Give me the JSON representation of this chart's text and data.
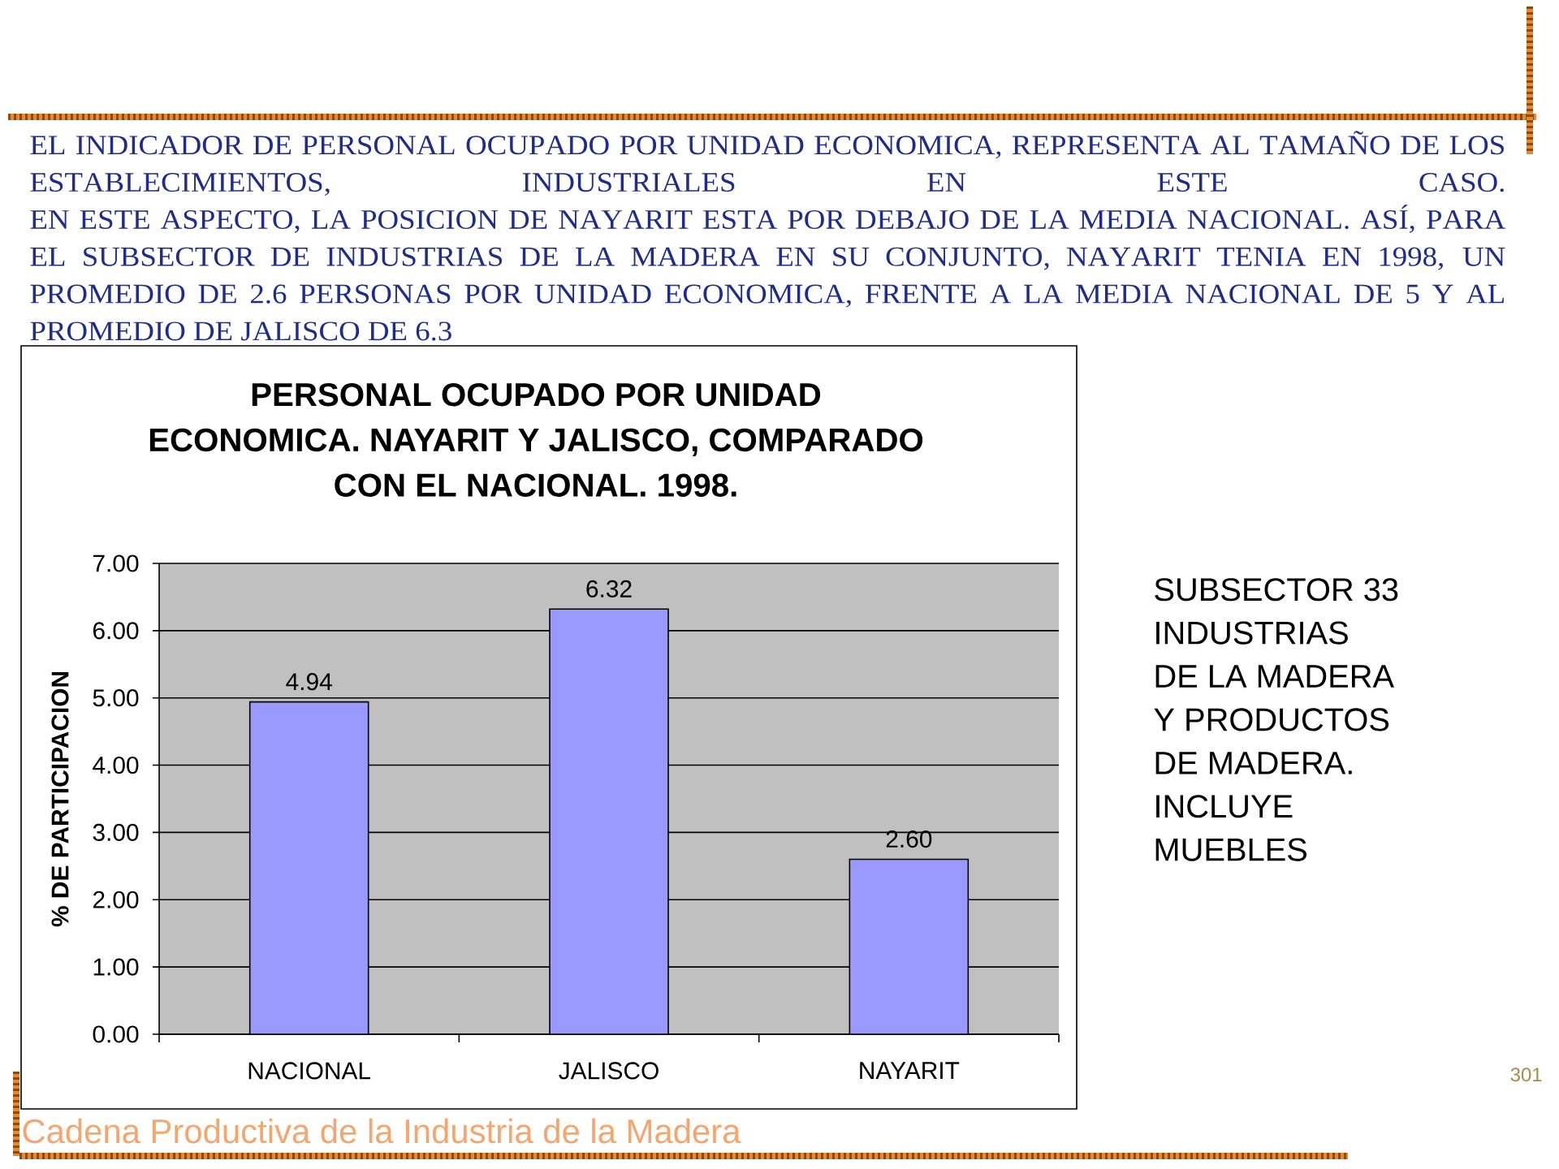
{
  "chart_data": {
    "type": "bar",
    "title": "PERSONAL OCUPADO POR UNIDAD ECONOMICA. NAYARIT Y JALISCO, COMPARADO CON EL NACIONAL. 1998.",
    "ylabel": "% DE PARTICIPACION",
    "categories": [
      "NACIONAL",
      "JALISCO",
      "NAYARIT"
    ],
    "values": [
      4.94,
      6.32,
      2.6
    ],
    "value_labels": [
      "4.94",
      "6.32",
      "2.60"
    ],
    "color": "#9999ff",
    "ylim": [
      0,
      7
    ],
    "yticks": [
      {
        "value": 0,
        "label": "0.00"
      },
      {
        "value": 1,
        "label": "1.00"
      },
      {
        "value": 2,
        "label": "2.00"
      },
      {
        "value": 3,
        "label": "3.00"
      },
      {
        "value": 4,
        "label": "4.00"
      },
      {
        "value": 5,
        "label": "5.00"
      },
      {
        "value": 6,
        "label": "6.00"
      },
      {
        "value": 7,
        "label": "7.00"
      }
    ],
    "grid": "y",
    "annotations": [
      "EL INDICADOR DE PERSONAL OCUPADO POR UNIDAD ECONOMICA, REPRESENTA AL TAMAÑO DE LOS ESTABLECIMIENTOS, INDUSTRIALES EN ESTE CASO.",
      "EN ESTE ASPECTO, LA POSICION DE NAYARIT ESTA POR DEBAJO DE LA MEDIA NACIONAL. ASÍ, PARA EL SUBSECTOR DE INDUSTRIAS DE LA MADERA EN SU CONJUNTO, NAYARIT TENIA EN 1998, UN PROMEDIO DE 2.6 PERSONAS POR UNIDAD ECONOMICA, FRENTE A LA MEDIA NACIONAL DE 5 Y AL PROMEDIO DE JALISCO DE 6.3",
      "SUBSECTOR 33 INDUSTRIAS DE LA MADERA Y PRODUCTOS DE MADERA. INCLUYE MUEBLES",
      "301",
      "Cadena Productiva de la Industria de la Madera"
    ]
  }
}
